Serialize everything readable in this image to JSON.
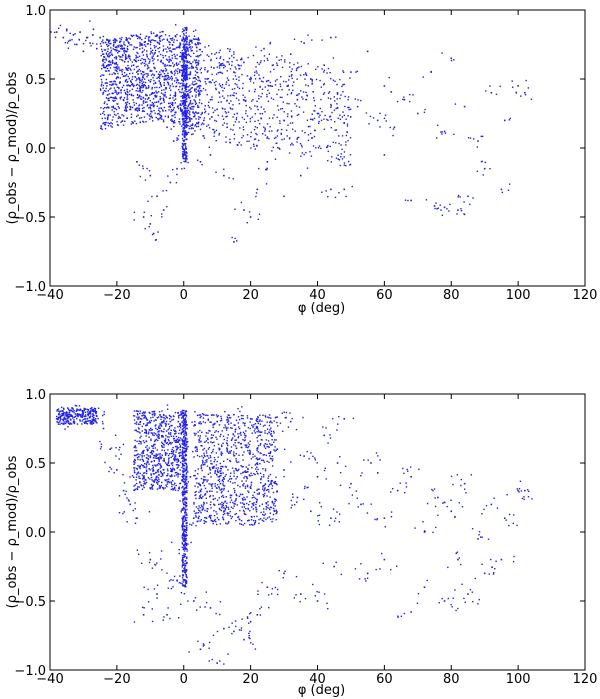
{
  "chart_data": [
    {
      "type": "scatter",
      "title": "",
      "xlabel": "φ (deg)",
      "ylabel": "(ρ_obs − ρ_mod)/ρ_obs",
      "xlim": [
        -40,
        120
      ],
      "ylim": [
        -1.0,
        1.0
      ],
      "xticks": [
        "−40",
        "−20",
        "0",
        "20",
        "40",
        "60",
        "80",
        "100",
        "120"
      ],
      "xtick_values": [
        -40,
        -20,
        0,
        20,
        40,
        60,
        80,
        100,
        120
      ],
      "yticks": [
        "1.0",
        "0.5",
        "0.0",
        "−0.5",
        "−1.0"
      ],
      "ytick_values": [
        1.0,
        0.5,
        0.0,
        -0.5,
        -1.0
      ],
      "grid": false,
      "color": "#1f1fe8",
      "series": [
        {
          "points": [
            [
              -38,
              0.84
            ],
            [
              -36,
              0.8
            ],
            [
              -35,
              0.86
            ],
            [
              -34,
              0.78
            ],
            [
              -33,
              0.82
            ],
            [
              -32,
              0.75
            ],
            [
              -31,
              0.84
            ],
            [
              -30,
              0.7
            ],
            [
              -29,
              0.8
            ],
            [
              -28,
              0.76
            ],
            [
              -27,
              0.86
            ],
            [
              -26,
              0.72
            ],
            [
              -25,
              0.8
            ],
            [
              -24,
              0.68
            ],
            [
              -23,
              0.75
            ],
            [
              -22,
              0.62
            ],
            [
              -21,
              0.74
            ],
            [
              -20,
              0.58
            ],
            [
              -19,
              0.66
            ],
            [
              -18,
              0.52
            ],
            [
              -17,
              0.7
            ],
            [
              -16,
              0.45
            ],
            [
              -15,
              0.6
            ],
            [
              -14,
              0.5
            ],
            [
              -13,
              0.42
            ],
            [
              -12,
              0.55
            ],
            [
              -11,
              0.38
            ],
            [
              -10,
              0.48
            ],
            [
              -9,
              0.3
            ],
            [
              -8,
              0.4
            ],
            [
              -7,
              0.22
            ],
            [
              -6,
              0.35
            ],
            [
              -5,
              0.15
            ],
            [
              -4,
              0.45
            ],
            [
              -3,
              0.05
            ],
            [
              -2,
              0.6
            ],
            [
              -1,
              0.75
            ],
            [
              0,
              0.85
            ],
            [
              0,
              0.3
            ],
            [
              0,
              -0.05
            ],
            [
              1,
              0.8
            ],
            [
              1,
              0.1
            ],
            [
              2,
              0.55
            ],
            [
              3,
              0.3
            ],
            [
              4,
              0.62
            ],
            [
              5,
              0.45
            ],
            [
              6,
              0.2
            ],
            [
              7,
              0.5
            ],
            [
              8,
              0.35
            ],
            [
              9,
              0.58
            ],
            [
              10,
              0.28
            ],
            [
              11,
              0.45
            ],
            [
              12,
              0.6
            ],
            [
              13,
              0.15
            ],
            [
              14,
              0.38
            ],
            [
              15,
              0.55
            ],
            [
              16,
              0.25
            ],
            [
              18,
              0.62
            ],
            [
              20,
              0.5
            ],
            [
              22,
              0.3
            ],
            [
              24,
              0.72
            ],
            [
              26,
              0.45
            ],
            [
              28,
              0.6
            ],
            [
              30,
              0.2
            ],
            [
              32,
              0.68
            ],
            [
              34,
              0.35
            ],
            [
              36,
              0.76
            ],
            [
              38,
              0.5
            ],
            [
              40,
              0.25
            ],
            [
              42,
              0.6
            ],
            [
              44,
              0.8
            ],
            [
              46,
              0.4
            ],
            [
              48,
              0.18
            ],
            [
              50,
              0.55
            ],
            [
              52,
              0.3
            ],
            [
              55,
              0.7
            ],
            [
              58,
              0.2
            ],
            [
              60,
              0.45
            ],
            [
              63,
              0.15
            ],
            [
              66,
              0.35
            ],
            [
              70,
              0.25
            ],
            [
              74,
              0.55
            ],
            [
              78,
              0.12
            ],
            [
              80,
              0.65
            ],
            [
              84,
              0.3
            ],
            [
              88,
              0.05
            ],
            [
              92,
              0.4
            ],
            [
              96,
              0.2
            ],
            [
              100,
              0.45
            ],
            [
              102,
              0.4
            ],
            [
              -14,
              -0.1
            ],
            [
              -10,
              -0.2
            ],
            [
              -8,
              -0.35
            ],
            [
              -6,
              -0.45
            ],
            [
              -10,
              -0.55
            ],
            [
              -12,
              -0.5
            ],
            [
              -9,
              -0.62
            ],
            [
              15,
              -0.68
            ],
            [
              18,
              -0.45
            ],
            [
              22,
              -0.3
            ],
            [
              20,
              -0.5
            ],
            [
              35,
              -0.2
            ],
            [
              48,
              -0.3
            ],
            [
              68,
              -0.38
            ],
            [
              75,
              -0.42
            ],
            [
              78,
              -0.43
            ],
            [
              82,
              -0.45
            ],
            [
              90,
              -0.15
            ],
            [
              95,
              -0.3
            ],
            [
              44,
              -0.3
            ],
            [
              30,
              -0.35
            ],
            [
              12,
              -0.2
            ],
            [
              5,
              -0.1
            ],
            [
              -4,
              -0.25
            ],
            [
              -2,
              -0.15
            ],
            [
              8,
              -0.05
            ],
            [
              25,
              -0.1
            ],
            [
              60,
              -0.05
            ],
            [
              85,
              -0.35
            ]
          ]
        }
      ]
    },
    {
      "type": "scatter",
      "title": "",
      "xlabel": "φ (deg)",
      "ylabel": "(ρ_obs − ρ_mod)/ρ_obs",
      "xlim": [
        -40,
        120
      ],
      "ylim": [
        -1.0,
        1.0
      ],
      "xticks": [
        "−40",
        "−20",
        "0",
        "20",
        "40",
        "60",
        "80",
        "100",
        "120"
      ],
      "xtick_values": [
        -40,
        -20,
        0,
        20,
        40,
        60,
        80,
        100,
        120
      ],
      "yticks": [
        "1.0",
        "0.5",
        "0.0",
        "−0.5",
        "−1.0"
      ],
      "ytick_values": [
        1.0,
        0.5,
        0.0,
        -0.5,
        -1.0
      ],
      "grid": false,
      "color": "#1f1fe8",
      "series": [
        {
          "points": [
            [
              -38,
              0.82
            ],
            [
              -36,
              0.86
            ],
            [
              -34,
              0.88
            ],
            [
              -32,
              0.88
            ],
            [
              -30,
              0.87
            ],
            [
              -28,
              0.86
            ],
            [
              -26,
              0.84
            ],
            [
              -24,
              0.75
            ],
            [
              -22,
              0.6
            ],
            [
              -20,
              0.45
            ],
            [
              -18,
              0.3
            ],
            [
              -16,
              0.2
            ],
            [
              -14,
              0.1
            ],
            [
              -12,
              0.4
            ],
            [
              -10,
              0.55
            ],
            [
              -8,
              0.7
            ],
            [
              -6,
              0.85
            ],
            [
              -4,
              0.8
            ],
            [
              -2,
              0.6
            ],
            [
              0,
              0.88
            ],
            [
              0,
              0.2
            ],
            [
              0,
              -0.1
            ],
            [
              1,
              0.75
            ],
            [
              2,
              0.4
            ],
            [
              3,
              0.1
            ],
            [
              4,
              0.6
            ],
            [
              5,
              0.3
            ],
            [
              6,
              0.85
            ],
            [
              7,
              0.15
            ],
            [
              8,
              0.45
            ],
            [
              9,
              0.2
            ],
            [
              10,
              0.8
            ],
            [
              11,
              0.35
            ],
            [
              12,
              0.15
            ],
            [
              13,
              0.6
            ],
            [
              14,
              0.25
            ],
            [
              15,
              0.85
            ],
            [
              16,
              0.4
            ],
            [
              18,
              0.2
            ],
            [
              20,
              0.82
            ],
            [
              22,
              0.5
            ],
            [
              24,
              0.3
            ],
            [
              26,
              0.8
            ],
            [
              28,
              0.6
            ],
            [
              30,
              0.45
            ],
            [
              32,
              0.8
            ],
            [
              34,
              0.25
            ],
            [
              36,
              0.55
            ],
            [
              38,
              0.15
            ],
            [
              40,
              0.4
            ],
            [
              42,
              0.7
            ],
            [
              44,
              0.1
            ],
            [
              46,
              0.5
            ],
            [
              48,
              0.82
            ],
            [
              50,
              0.35
            ],
            [
              53,
              0.2
            ],
            [
              56,
              0.5
            ],
            [
              60,
              0.1
            ],
            [
              64,
              0.3
            ],
            [
              68,
              0.4
            ],
            [
              72,
              0.0
            ],
            [
              76,
              0.25
            ],
            [
              80,
              0.15
            ],
            [
              84,
              0.35
            ],
            [
              88,
              -0.05
            ],
            [
              92,
              0.2
            ],
            [
              96,
              0.1
            ],
            [
              100,
              0.3
            ],
            [
              102,
              0.3
            ],
            [
              -12,
              -0.6
            ],
            [
              -10,
              -0.2
            ],
            [
              -8,
              -0.45
            ],
            [
              -5,
              -0.6
            ],
            [
              -2,
              -0.35
            ],
            [
              3,
              -0.5
            ],
            [
              8,
              -0.55
            ],
            [
              12,
              -0.7
            ],
            [
              15,
              -0.72
            ],
            [
              18,
              -0.78
            ],
            [
              20,
              -0.65
            ],
            [
              22,
              -0.6
            ],
            [
              25,
              -0.4
            ],
            [
              30,
              -0.3
            ],
            [
              40,
              -0.5
            ],
            [
              55,
              -0.3
            ],
            [
              68,
              -0.58
            ],
            [
              72,
              -0.4
            ],
            [
              78,
              -0.5
            ],
            [
              85,
              -0.45
            ],
            [
              90,
              -0.3
            ],
            [
              95,
              -0.2
            ],
            [
              10,
              -0.95
            ],
            [
              5,
              -0.85
            ],
            [
              35,
              -0.45
            ],
            [
              45,
              -0.25
            ],
            [
              60,
              -0.2
            ],
            [
              82,
              -0.2
            ]
          ]
        }
      ]
    }
  ]
}
